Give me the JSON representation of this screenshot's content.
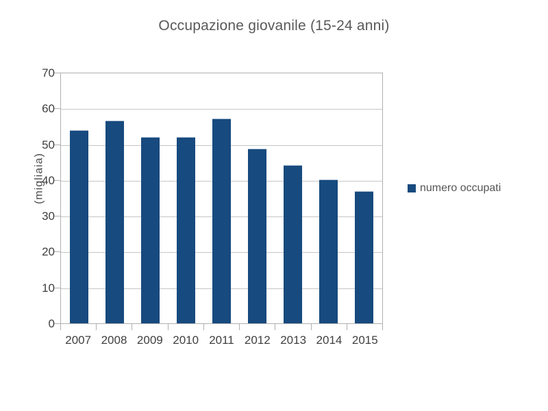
{
  "title": "Occupazione giovanile (15-24 anni)",
  "legend": {
    "label": "numero occupati"
  },
  "colors": {
    "bar": "#174a7e",
    "grid": "#c5c5c5",
    "axis": "#b0b0b0",
    "title_text": "#595959",
    "tick_text": "#404040"
  },
  "chart_data": {
    "type": "bar",
    "title": "Occupazione giovanile (15-24 anni)",
    "categories": [
      "2007",
      "2008",
      "2009",
      "2010",
      "2011",
      "2012",
      "2013",
      "2014",
      "2015"
    ],
    "series": [
      {
        "name": "numero occupati",
        "values": [
          54.1,
          56.7,
          52.2,
          52.2,
          57.4,
          49.0,
          44.4,
          40.3,
          37.0
        ]
      }
    ],
    "xlabel": "",
    "ylabel": "(migliaia)",
    "ylim": [
      0,
      70
    ],
    "yticks": [
      0,
      10,
      20,
      30,
      40,
      50,
      60,
      70
    ],
    "grid": true,
    "legend_position": "right",
    "bar_color": "#174a7e"
  }
}
